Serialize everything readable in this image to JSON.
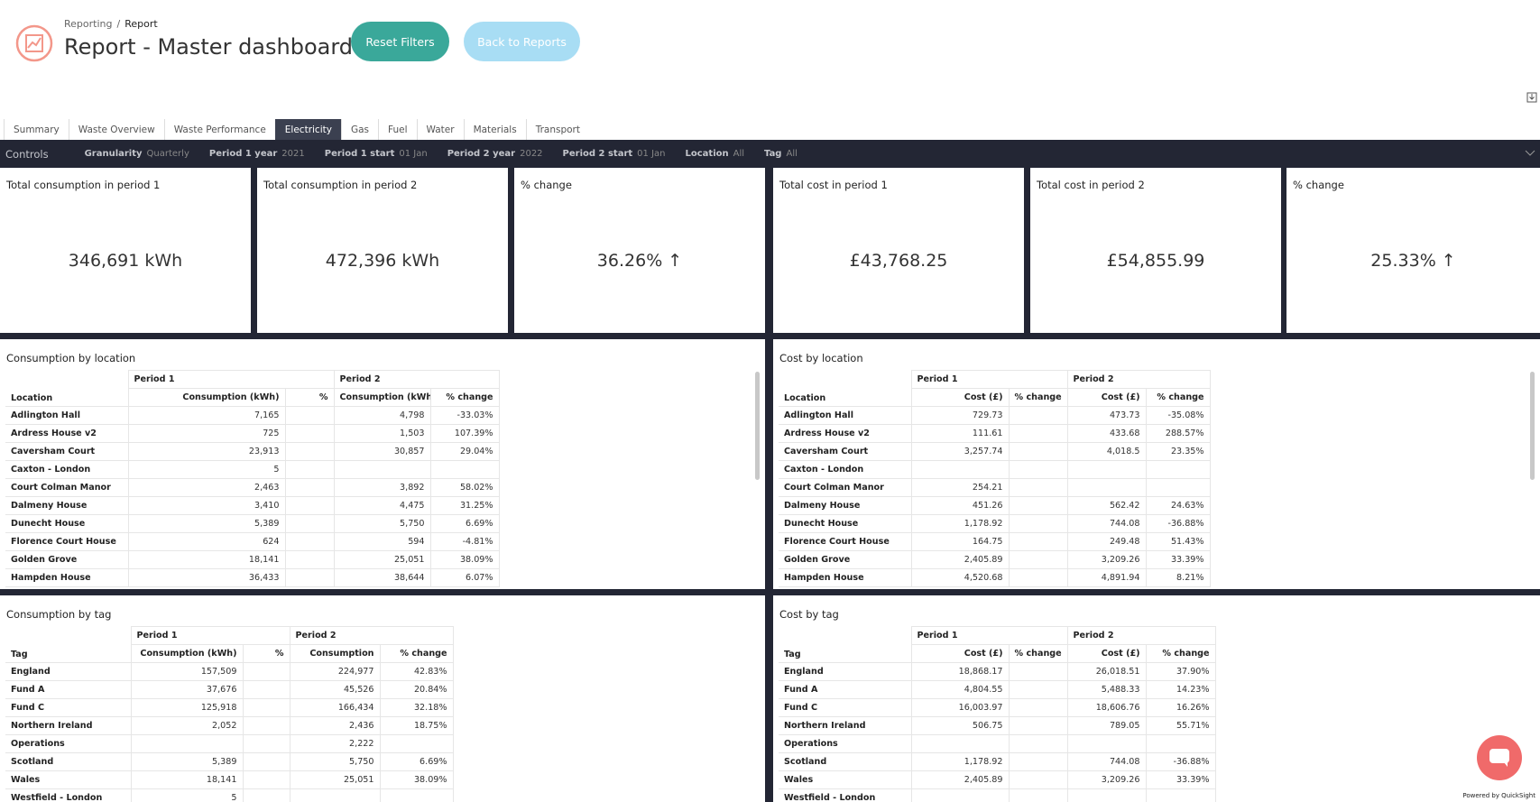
{
  "header": {
    "breadcrumb": [
      "Reporting",
      "Report"
    ],
    "breadcrumb_separator": "/",
    "title": "Report - Master dashboard",
    "buttons": [
      "Reset Filters",
      "Back to Reports"
    ]
  },
  "tabs": {
    "items": [
      "Summary",
      "Waste Overview",
      "Waste Performance",
      "Electricity",
      "Gas",
      "Fuel",
      "Water",
      "Materials",
      "Transport"
    ],
    "active": 3
  },
  "controls": {
    "label": "Controls",
    "items": [
      {
        "label": "Granularity",
        "value": "Quarterly"
      },
      {
        "label": "Period 1 year",
        "value": "2021"
      },
      {
        "label": "Period 1 start",
        "value": "01 Jan"
      },
      {
        "label": "Period 2 year",
        "value": "2022"
      },
      {
        "label": "Period 2 start",
        "value": "01 Jan"
      },
      {
        "label": "Location",
        "value": "All"
      },
      {
        "label": "Tag",
        "value": "All"
      }
    ]
  },
  "kpis": [
    {
      "title": "Total consumption in period 1",
      "value": "346,691 kWh"
    },
    {
      "title": "Total consumption in period 2",
      "value": "472,396 kWh"
    },
    {
      "title": "% change",
      "value": "36.26% ↑"
    },
    {
      "title": "Total cost in period 1",
      "value": "£43,768.25"
    },
    {
      "title": "Total cost in period 2",
      "value": "£54,855.99"
    },
    {
      "title": "% change",
      "value": "25.33% ↑"
    }
  ],
  "tables": [
    {
      "title": "Consumption by location",
      "groups": [
        "Period 1",
        "Period 2"
      ],
      "row_header": "Location",
      "columns": [
        "Consumption (kWh)",
        "%",
        "Consumption (kWh)",
        "% change"
      ],
      "rows": [
        [
          "Adlington Hall",
          "7,165",
          null,
          "4,798",
          "-33.03%"
        ],
        [
          "Ardress House v2",
          "725",
          null,
          "1,503",
          "107.39%"
        ],
        [
          "Caversham Court",
          "23,913",
          null,
          "30,857",
          "29.04%"
        ],
        [
          "Caxton - London",
          "5",
          null,
          null,
          null
        ],
        [
          "Court Colman Manor",
          "2,463",
          null,
          "3,892",
          "58.02%"
        ],
        [
          "Dalmeny House",
          "3,410",
          null,
          "4,475",
          "31.25%"
        ],
        [
          "Dunecht House",
          "5,389",
          null,
          "5,750",
          "6.69%"
        ],
        [
          "Florence Court House",
          "624",
          null,
          "594",
          "-4.81%"
        ],
        [
          "Golden Grove",
          "18,141",
          null,
          "25,051",
          "38.09%"
        ],
        [
          "Hampden House",
          "36,433",
          null,
          "38,644",
          "6.07%"
        ]
      ]
    },
    {
      "title": "Cost by location",
      "groups": [
        "Period 1",
        "Period 2"
      ],
      "row_header": "Location",
      "columns": [
        "Cost (£)",
        "% change",
        "Cost (£)",
        "% change"
      ],
      "rows": [
        [
          "Adlington Hall",
          "729.73",
          null,
          "473.73",
          "-35.08%"
        ],
        [
          "Ardress House v2",
          "111.61",
          null,
          "433.68",
          "288.57%"
        ],
        [
          "Caversham Court",
          "3,257.74",
          null,
          "4,018.5",
          "23.35%"
        ],
        [
          "Caxton - London",
          null,
          null,
          null,
          null
        ],
        [
          "Court Colman Manor",
          "254.21",
          null,
          null,
          null
        ],
        [
          "Dalmeny House",
          "451.26",
          null,
          "562.42",
          "24.63%"
        ],
        [
          "Dunecht House",
          "1,178.92",
          null,
          "744.08",
          "-36.88%"
        ],
        [
          "Florence Court House",
          "164.75",
          null,
          "249.48",
          "51.43%"
        ],
        [
          "Golden Grove",
          "2,405.89",
          null,
          "3,209.26",
          "33.39%"
        ],
        [
          "Hampden House",
          "4,520.68",
          null,
          "4,891.94",
          "8.21%"
        ]
      ]
    },
    {
      "title": "Consumption by tag",
      "groups": [
        "Period 1",
        "Period 2"
      ],
      "row_header": "Tag",
      "columns": [
        "Consumption (kWh)",
        "%",
        "Consumption",
        "% change"
      ],
      "rows": [
        [
          "England",
          "157,509",
          null,
          "224,977",
          "42.83%"
        ],
        [
          "Fund A",
          "37,676",
          null,
          "45,526",
          "20.84%"
        ],
        [
          "Fund C",
          "125,918",
          null,
          "166,434",
          "32.18%"
        ],
        [
          "Northern Ireland",
          "2,052",
          null,
          "2,436",
          "18.75%"
        ],
        [
          "Operations",
          null,
          null,
          "2,222",
          null
        ],
        [
          "Scotland",
          "5,389",
          null,
          "5,750",
          "6.69%"
        ],
        [
          "Wales",
          "18,141",
          null,
          "25,051",
          "38.09%"
        ],
        [
          "Westfield - London",
          "5",
          null,
          null,
          null
        ]
      ]
    },
    {
      "title": "Cost by tag",
      "groups": [
        "Period 1",
        "Period 2"
      ],
      "row_header": "Tag",
      "columns": [
        "Cost (£)",
        "% change",
        "Cost (£)",
        "% change"
      ],
      "rows": [
        [
          "England",
          "18,868.17",
          null,
          "26,018.51",
          "37.90%"
        ],
        [
          "Fund A",
          "4,804.55",
          null,
          "5,488.33",
          "14.23%"
        ],
        [
          "Fund C",
          "16,003.97",
          null,
          "18,606.76",
          "16.26%"
        ],
        [
          "Northern Ireland",
          "506.75",
          null,
          "789.05",
          "55.71%"
        ],
        [
          "Operations",
          null,
          null,
          null,
          null
        ],
        [
          "Scotland",
          "1,178.92",
          null,
          "744.08",
          "-36.88%"
        ],
        [
          "Wales",
          "2,405.89",
          null,
          "3,209.26",
          "33.39%"
        ],
        [
          "Westfield - London",
          null,
          null,
          null,
          null
        ]
      ]
    }
  ],
  "footer": "Powered by QuickSight"
}
